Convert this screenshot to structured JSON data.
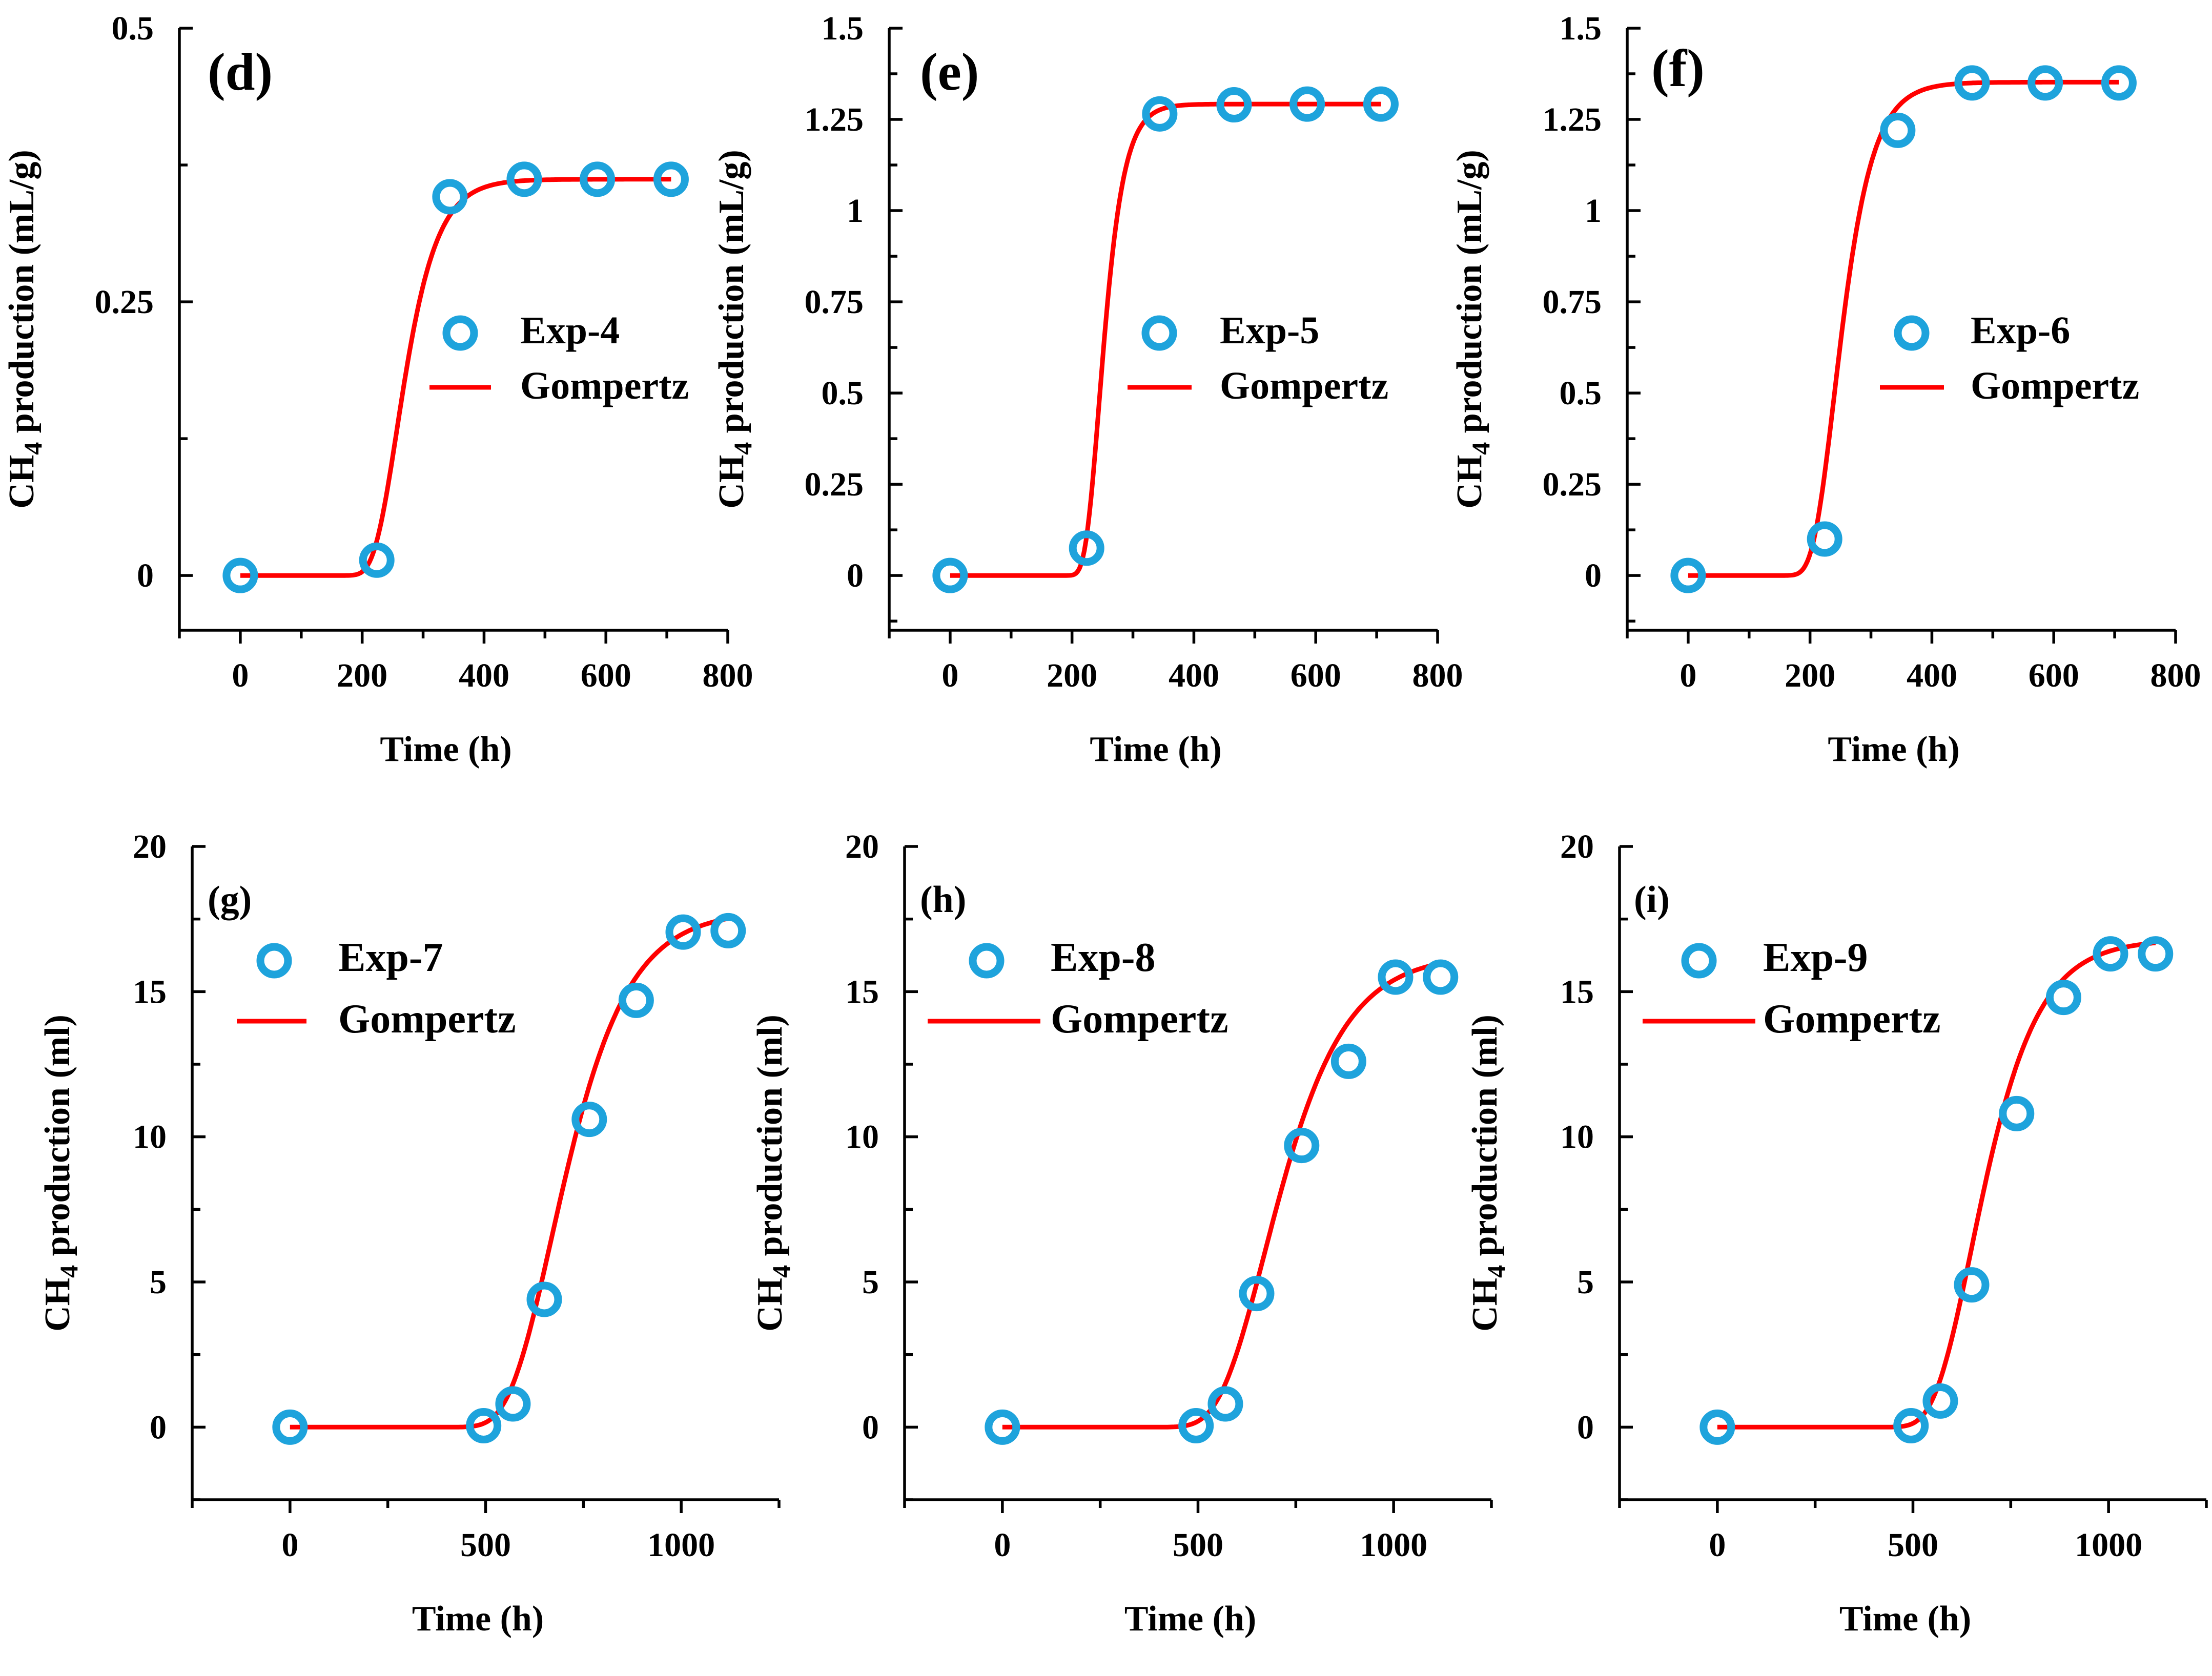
{
  "chart_data": [
    {
      "id": "d",
      "type": "scatter",
      "panel_label": "(d)",
      "xlabel": "Time (h)",
      "ylabel": "CH4 production (mL/g)",
      "xlim": [
        -100,
        800
      ],
      "ylim": [
        -0.05,
        0.5
      ],
      "xticks": [
        0,
        200,
        400,
        600,
        800
      ],
      "yticks": [
        0,
        0.25,
        0.5
      ],
      "yticklabels": [
        "0",
        "0.25",
        "0.5"
      ],
      "series": [
        {
          "name": "Exp-4",
          "kind": "points",
          "color": "#1ea3dc",
          "x": [
            0,
            224,
            344,
            466,
            586,
            707
          ],
          "y": [
            0,
            0.014,
            0.346,
            0.362,
            0.362,
            0.362
          ]
        },
        {
          "name": "Gompertz",
          "kind": "line",
          "color": "#ff0000",
          "model": {
            "P": 0.362,
            "Rm": 0.0036,
            "lambda": 220
          }
        }
      ]
    },
    {
      "id": "e",
      "type": "scatter",
      "panel_label": "(e)",
      "xlabel": "Time (h)",
      "ylabel": "CH4 production (mL/g)",
      "xlim": [
        -100,
        800
      ],
      "ylim": [
        -0.15,
        1.5
      ],
      "xticks": [
        0,
        200,
        400,
        600,
        800
      ],
      "yticks": [
        0,
        0.25,
        0.5,
        0.75,
        1,
        1.25,
        1.5
      ],
      "yticklabels": [
        "0",
        "0.25",
        "0.5",
        "0.75",
        "1",
        "1.25",
        "1.5"
      ],
      "series": [
        {
          "name": "Exp-5",
          "kind": "points",
          "color": "#1ea3dc",
          "x": [
            0,
            224,
            344,
            466,
            586,
            707
          ],
          "y": [
            0,
            0.075,
            1.265,
            1.29,
            1.292,
            1.292
          ]
        },
        {
          "name": "Gompertz",
          "kind": "line",
          "color": "#ff0000",
          "model": {
            "P": 1.292,
            "Rm": 0.021,
            "lambda": 222
          }
        }
      ]
    },
    {
      "id": "f",
      "type": "scatter",
      "panel_label": "(f)",
      "xlabel": "Time (h)",
      "ylabel": "CH4 production (mL/g)",
      "xlim": [
        -100,
        800
      ],
      "ylim": [
        -0.15,
        1.5
      ],
      "xticks": [
        0,
        200,
        400,
        600,
        800
      ],
      "yticks": [
        0,
        0.25,
        0.5,
        0.75,
        1,
        1.25,
        1.5
      ],
      "yticklabels": [
        "0",
        "0.25",
        "0.5",
        "0.75",
        "1",
        "1.25",
        "1.5"
      ],
      "series": [
        {
          "name": "Exp-6",
          "kind": "points",
          "color": "#1ea3dc",
          "x": [
            0,
            224,
            344,
            466,
            586,
            707
          ],
          "y": [
            0,
            0.1,
            1.22,
            1.35,
            1.35,
            1.35
          ]
        },
        {
          "name": "Gompertz",
          "kind": "line",
          "color": "#ff0000",
          "model": {
            "P": 1.352,
            "Rm": 0.0142,
            "lambda": 205
          }
        }
      ]
    },
    {
      "id": "g",
      "type": "scatter",
      "panel_label": "(g)",
      "xlabel": "Time (h)",
      "ylabel": "CH4 production (ml)",
      "xlim": [
        -250,
        1250
      ],
      "ylim": [
        -2.5,
        20
      ],
      "xticks": [
        0,
        500,
        1000
      ],
      "yticks": [
        0,
        5,
        10,
        15,
        20
      ],
      "yticklabels": [
        "0",
        "5",
        "10",
        "15",
        "20"
      ],
      "series": [
        {
          "name": "Exp-7",
          "kind": "points",
          "color": "#1ea3dc",
          "x": [
            0,
            495,
            570,
            650,
            765,
            885,
            1005,
            1120
          ],
          "y": [
            0,
            0.05,
            0.8,
            4.4,
            10.6,
            14.7,
            17.05,
            17.1
          ]
        },
        {
          "name": "Gompertz",
          "kind": "line",
          "color": "#ff0000",
          "model": {
            "P": 17.8,
            "Rm": 0.06,
            "lambda": 560
          }
        }
      ]
    },
    {
      "id": "h",
      "type": "scatter",
      "panel_label": "(h)",
      "xlabel": "Time (h)",
      "ylabel": "CH4 production (ml)",
      "xlim": [
        -250,
        1250
      ],
      "ylim": [
        -2.5,
        20
      ],
      "xticks": [
        0,
        500,
        1000
      ],
      "yticks": [
        0,
        5,
        10,
        15,
        20
      ],
      "yticklabels": [
        "0",
        "5",
        "10",
        "15",
        "20"
      ],
      "series": [
        {
          "name": "Exp-8",
          "kind": "points",
          "color": "#1ea3dc",
          "x": [
            0,
            495,
            570,
            650,
            765,
            885,
            1005,
            1120
          ],
          "y": [
            0,
            0.05,
            0.8,
            4.6,
            9.7,
            12.6,
            15.5,
            15.5
          ]
        },
        {
          "name": "Gompertz",
          "kind": "line",
          "color": "#ff0000",
          "model": {
            "P": 16.3,
            "Rm": 0.052,
            "lambda": 555
          }
        }
      ]
    },
    {
      "id": "i",
      "type": "scatter",
      "panel_label": "(i)",
      "xlabel": "Time (h)",
      "ylabel": "CH4 production (ml)",
      "xlim": [
        -250,
        1250
      ],
      "ylim": [
        -2.5,
        20
      ],
      "xticks": [
        0,
        500,
        1000
      ],
      "yticks": [
        0,
        5,
        10,
        15,
        20
      ],
      "yticklabels": [
        "0",
        "5",
        "10",
        "15",
        "20"
      ],
      "series": [
        {
          "name": "Exp-9",
          "kind": "points",
          "color": "#1ea3dc",
          "x": [
            0,
            495,
            570,
            650,
            765,
            885,
            1005,
            1120
          ],
          "y": [
            0,
            0.05,
            0.9,
            4.9,
            10.8,
            14.8,
            16.3,
            16.3
          ]
        },
        {
          "name": "Gompertz",
          "kind": "line",
          "color": "#ff0000",
          "model": {
            "P": 16.8,
            "Rm": 0.065,
            "lambda": 555
          }
        }
      ]
    }
  ]
}
